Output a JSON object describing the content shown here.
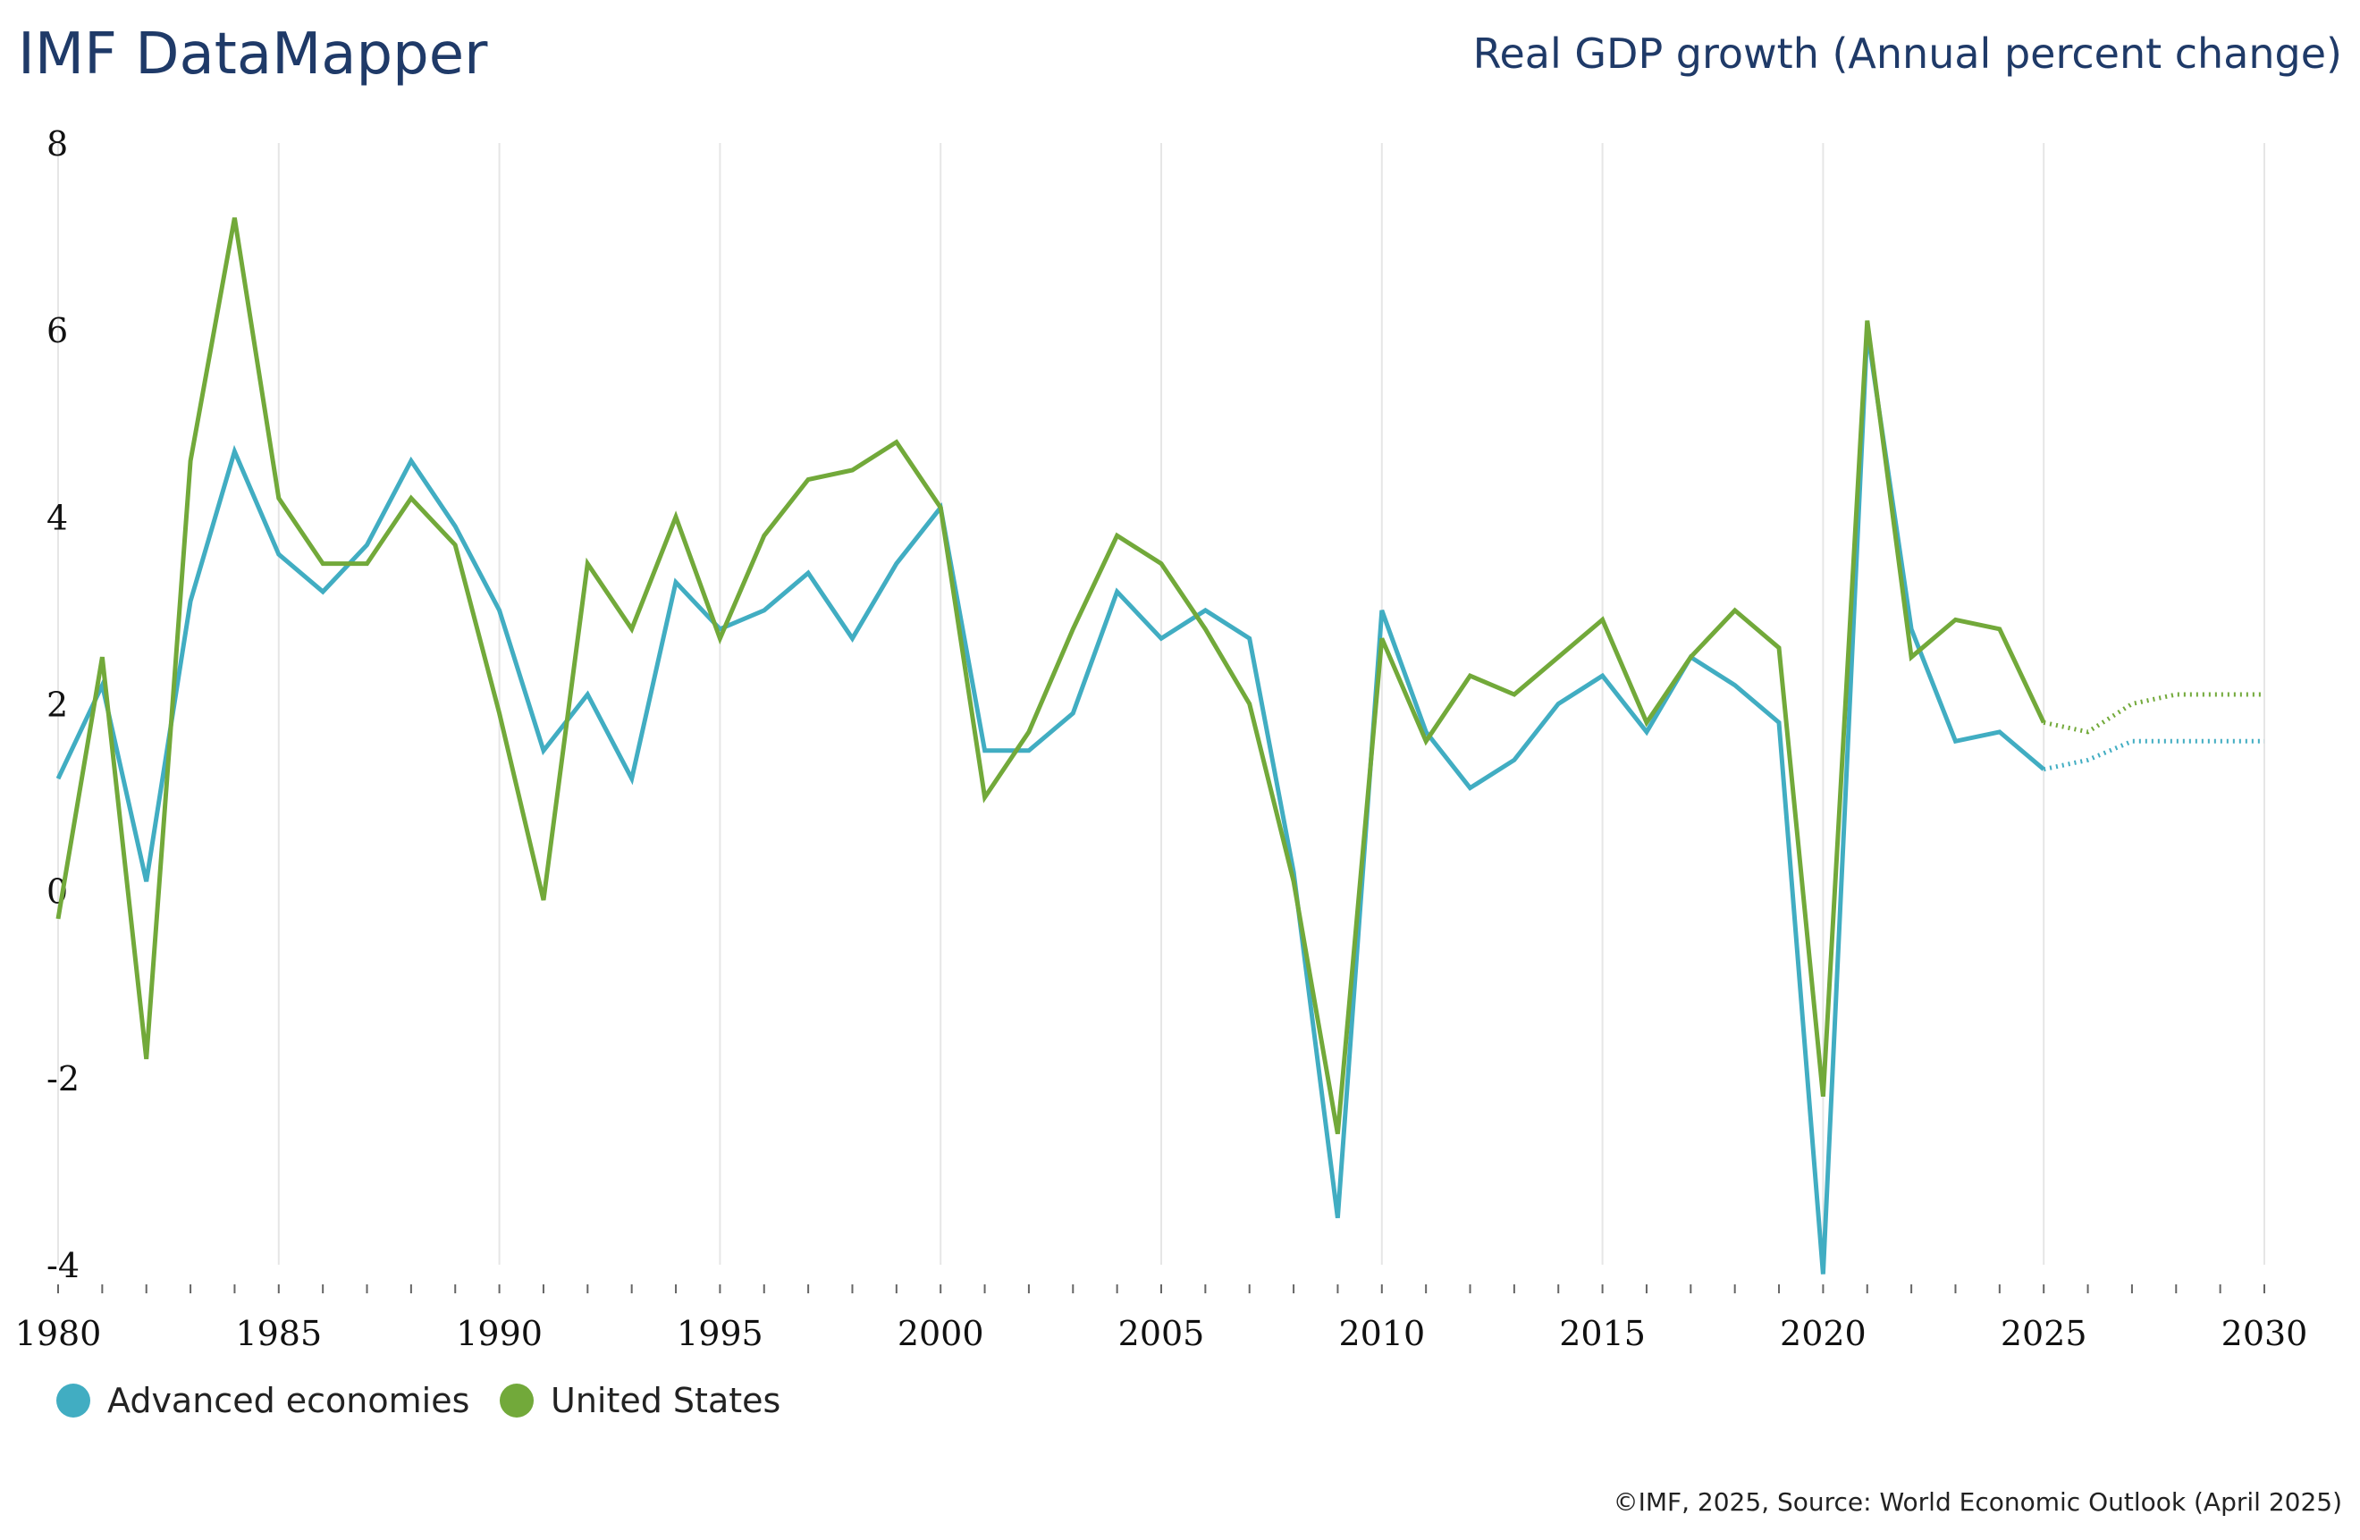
{
  "header": {
    "brand": "IMF DataMapper",
    "title": "Real GDP growth (Annual percent change)"
  },
  "footer": {
    "source": "©IMF, 2025, Source: World Economic Outlook (April 2025)"
  },
  "legend": [
    {
      "label": "Advanced economies",
      "color": "#41adc2"
    },
    {
      "label": "United States",
      "color": "#72a93a"
    }
  ],
  "chart_data": {
    "type": "line",
    "title": "Real GDP growth (Annual percent change)",
    "xlabel": "",
    "ylabel": "",
    "xlim": [
      1980,
      2030
    ],
    "ylim": [
      -4,
      8
    ],
    "y_ticks": [
      "8",
      "6",
      "4",
      "2",
      "0",
      "-2",
      "-4"
    ],
    "x_ticks": [
      "1980",
      "1985",
      "1990",
      "1995",
      "2000",
      "2005",
      "2010",
      "2015",
      "2020",
      "2025",
      "2030"
    ],
    "grid": "vertical",
    "legend_position": "bottom-left",
    "projection_start": 2025,
    "x": [
      1980,
      1981,
      1982,
      1983,
      1984,
      1985,
      1986,
      1987,
      1988,
      1989,
      1990,
      1991,
      1992,
      1993,
      1994,
      1995,
      1996,
      1997,
      1998,
      1999,
      2000,
      2001,
      2002,
      2003,
      2004,
      2005,
      2006,
      2007,
      2008,
      2009,
      2010,
      2011,
      2012,
      2013,
      2014,
      2015,
      2016,
      2017,
      2018,
      2019,
      2020,
      2021,
      2022,
      2023,
      2024,
      2025,
      2026,
      2027,
      2028,
      2029,
      2030
    ],
    "series": [
      {
        "name": "Advanced economies",
        "color": "#41adc2",
        "values": [
          1.2,
          2.2,
          0.1,
          3.1,
          4.7,
          3.6,
          3.2,
          3.7,
          4.6,
          3.9,
          3.0,
          1.5,
          2.1,
          1.2,
          3.3,
          2.8,
          3.0,
          3.4,
          2.7,
          3.5,
          4.1,
          1.5,
          1.5,
          1.9,
          3.2,
          2.7,
          3.0,
          2.7,
          0.2,
          -3.5,
          3.0,
          1.7,
          1.1,
          1.4,
          2.0,
          2.3,
          1.7,
          2.5,
          2.2,
          1.8,
          -4.1,
          6.0,
          2.8,
          1.6,
          1.7,
          1.3,
          1.4,
          1.6,
          1.6,
          1.6,
          1.6
        ]
      },
      {
        "name": "United States",
        "color": "#72a93a",
        "values": [
          -0.3,
          2.5,
          -1.8,
          4.6,
          7.2,
          4.2,
          3.5,
          3.5,
          4.2,
          3.7,
          1.9,
          -0.1,
          3.5,
          2.8,
          4.0,
          2.7,
          3.8,
          4.4,
          4.5,
          4.8,
          4.1,
          1.0,
          1.7,
          2.8,
          3.8,
          3.5,
          2.8,
          2.0,
          0.1,
          -2.6,
          2.7,
          1.6,
          2.3,
          2.1,
          2.5,
          2.9,
          1.8,
          2.5,
          3.0,
          2.6,
          -2.2,
          6.1,
          2.5,
          2.9,
          2.8,
          1.8,
          1.7,
          2.0,
          2.1,
          2.1,
          2.1
        ]
      }
    ]
  }
}
